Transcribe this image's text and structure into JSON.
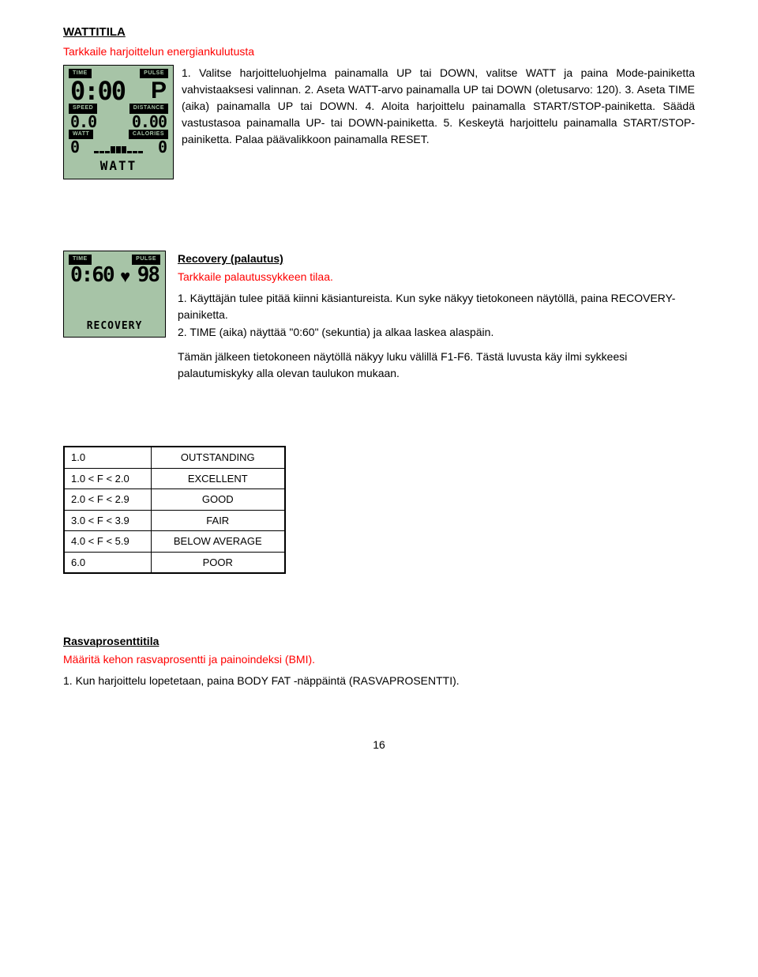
{
  "section1": {
    "title": "WATTITILA",
    "subtitle": "Tarkkaile harjoittelun energiankulutusta",
    "body": "1. Valitse harjoitteluohjelma painamalla UP tai DOWN, valitse WATT ja paina Mode-painiketta vahvistaaksesi valinnan. 2. Aseta WATT-arvo painamalla UP tai DOWN (oletusarvo: 120). 3. Aseta TIME (aika) painamalla UP tai DOWN. 4. Aloita harjoittelu painamalla START/STOP-painiketta. Säädä vastustasoa painamalla UP- tai DOWN-painiketta. 5. Keskeytä harjoittelu painamalla START/STOP-painiketta. Palaa päävalikkoon painamalla RESET.",
    "lcd": {
      "time_label": "TIME",
      "pulse_label": "PULSE",
      "time_value": "0:00",
      "p_value": "P",
      "speed_label": "SPEED",
      "distance_label": "DISTANCE",
      "speed_value": "0.0",
      "distance_value": "0.00",
      "watt_label": "WATT",
      "calories_label": "CALORIES",
      "watt_value": "0",
      "calories_value": "0",
      "mode_label": "WATT",
      "bg_color": "#a7c4a7"
    }
  },
  "section2": {
    "title": "Recovery (palautus)",
    "subtitle": "Tarkkaile palautussykkeen tilaa.",
    "line1": "1. Käyttäjän tulee pitää kiinni käsiantureista. Kun syke näkyy tietokoneen näytöllä, paina RECOVERY-painiketta.",
    "line2": "2. TIME (aika) näyttää \"0:60\" (sekuntia) ja alkaa laskea alaspäin.",
    "line3": "Tämän jälkeen tietokoneen näytöllä näkyy luku välillä F1-F6. Tästä luvusta käy ilmi sykkeesi palautumiskyky alla olevan taulukon mukaan.",
    "lcd": {
      "time_label": "TIME",
      "pulse_label": "PULSE",
      "time_value": "0:60",
      "pulse_value": "98",
      "mode_label": "RECOVERY",
      "bg_color": "#a7c4a7"
    }
  },
  "rating_table": {
    "rows": [
      {
        "range": "1.0",
        "label": "OUTSTANDING"
      },
      {
        "range": "1.0 < F < 2.0",
        "label": "EXCELLENT"
      },
      {
        "range": "2.0 < F < 2.9",
        "label": "GOOD"
      },
      {
        "range": "3.0 < F < 3.9",
        "label": "FAIR"
      },
      {
        "range": "4.0 < F < 5.9",
        "label": "BELOW AVERAGE"
      },
      {
        "range": "6.0",
        "label": "POOR"
      }
    ]
  },
  "section3": {
    "title": "Rasvaprosenttitila",
    "subtitle": "Määritä kehon rasvaprosentti ja painoindeksi (BMI).",
    "line1": "1. Kun harjoittelu lopetetaan, paina BODY FAT -näppäintä (RASVAPROSENTTI)."
  },
  "page_number": "16",
  "colors": {
    "text": "#000000",
    "red": "#ff0000",
    "lcd_bg": "#a7c4a7",
    "lcd_fg": "#000000"
  }
}
